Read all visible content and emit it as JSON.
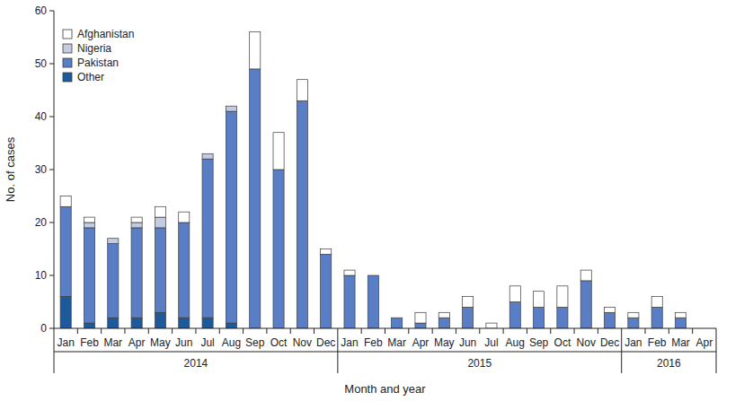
{
  "chart_data": {
    "type": "bar",
    "stacked": true,
    "legend": "top-left",
    "grid": false,
    "x_label": "Month and year",
    "y_label": "No. of cases",
    "categories": [
      "Jan",
      "Feb",
      "Mar",
      "Apr",
      "May",
      "Jun",
      "Jul",
      "Aug",
      "Sep",
      "Oct",
      "Nov",
      "Dec",
      "Jan",
      "Feb",
      "Mar",
      "Apr",
      "May",
      "Jun",
      "Jul",
      "Aug",
      "Sep",
      "Oct",
      "Nov",
      "Dec",
      "Jan",
      "Feb",
      "Mar",
      "Apr"
    ],
    "category_groups": [
      "2014",
      "2014",
      "2014",
      "2014",
      "2014",
      "2014",
      "2014",
      "2014",
      "2014",
      "2014",
      "2014",
      "2014",
      "2015",
      "2015",
      "2015",
      "2015",
      "2015",
      "2015",
      "2015",
      "2015",
      "2015",
      "2015",
      "2015",
      "2015",
      "2016",
      "2016",
      "2016",
      "2016"
    ],
    "ylim": [
      0,
      60
    ],
    "yticks": [
      0,
      10,
      20,
      30,
      40,
      50,
      60
    ],
    "series": [
      {
        "name": "Afghanistan",
        "color": "#ffffff",
        "values": [
          2,
          1,
          0,
          1,
          2,
          2,
          0,
          0,
          7,
          7,
          4,
          1,
          1,
          0,
          0,
          2,
          1,
          2,
          1,
          3,
          3,
          4,
          2,
          1,
          1,
          2,
          1,
          0
        ]
      },
      {
        "name": "Nigeria",
        "color": "#c3cbe0",
        "values": [
          0,
          1,
          1,
          1,
          2,
          0,
          1,
          1,
          0,
          0,
          0,
          0,
          0,
          0,
          0,
          0,
          0,
          0,
          0,
          0,
          0,
          0,
          0,
          0,
          0,
          0,
          0,
          0
        ]
      },
      {
        "name": "Pakistan",
        "color": "#5a7ec6",
        "values": [
          17,
          18,
          14,
          17,
          16,
          18,
          30,
          40,
          49,
          30,
          43,
          14,
          10,
          10,
          2,
          1,
          2,
          4,
          0,
          5,
          4,
          4,
          9,
          3,
          2,
          4,
          2,
          0
        ]
      },
      {
        "name": "Other",
        "color": "#1d5a9c",
        "values": [
          6,
          1,
          2,
          2,
          3,
          2,
          2,
          1,
          0,
          0,
          0,
          0,
          0,
          0,
          0,
          0,
          0,
          0,
          0,
          0,
          0,
          0,
          0,
          0,
          0,
          0,
          0,
          0
        ]
      }
    ]
  }
}
